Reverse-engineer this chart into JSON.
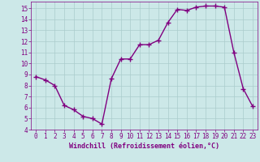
{
  "x": [
    0,
    1,
    2,
    3,
    4,
    5,
    6,
    7,
    8,
    9,
    10,
    11,
    12,
    13,
    14,
    15,
    16,
    17,
    18,
    19,
    20,
    21,
    22,
    23
  ],
  "y": [
    8.8,
    8.5,
    8.0,
    6.2,
    5.8,
    5.2,
    5.0,
    4.5,
    8.6,
    10.4,
    10.4,
    11.7,
    11.7,
    12.1,
    13.7,
    14.9,
    14.8,
    15.1,
    15.2,
    15.2,
    15.1,
    11.0,
    7.7,
    6.1
  ],
  "line_color": "#800080",
  "marker": "+",
  "markersize": 4,
  "linewidth": 1.0,
  "background_color": "#cce8e8",
  "grid_color": "#aacccc",
  "xlabel": "Windchill (Refroidissement éolien,°C)",
  "xlabel_color": "#800080",
  "xlim": [
    -0.5,
    23.5
  ],
  "ylim": [
    4,
    15.6
  ],
  "yticks": [
    4,
    5,
    6,
    7,
    8,
    9,
    10,
    11,
    12,
    13,
    14,
    15
  ],
  "xticks": [
    0,
    1,
    2,
    3,
    4,
    5,
    6,
    7,
    8,
    9,
    10,
    11,
    12,
    13,
    14,
    15,
    16,
    17,
    18,
    19,
    20,
    21,
    22,
    23
  ],
  "tick_color": "#800080",
  "tick_fontsize": 5.5,
  "xlabel_fontsize": 6.0
}
